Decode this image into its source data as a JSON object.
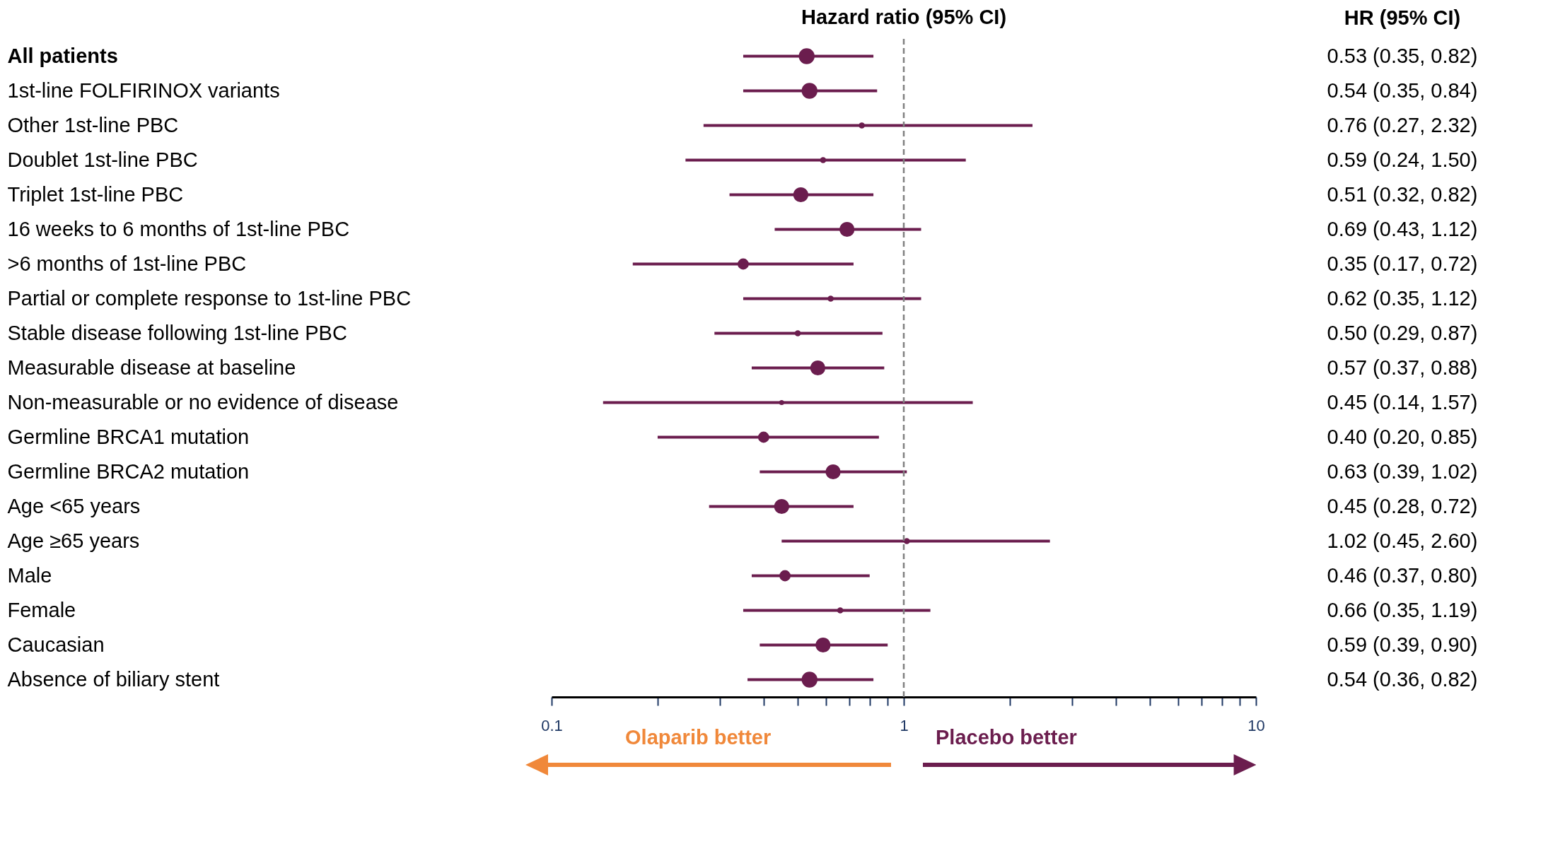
{
  "chart_data": {
    "type": "bubble",
    "orientation": "horizontal",
    "xlabel": "Hazard ratio (95% CI)",
    "categories": [
      "All patients",
      "1st-line FOLFIRINOX variants",
      "Other 1st-line PBC",
      "Doublet 1st-line PBC",
      "Triplet 1st-line PBC",
      "16 weeks to 6 months of 1st-line PBC",
      ">6 months of 1st-line PBC",
      "Partial or complete response to 1st-line PBC",
      "Stable disease following 1st-line PBC",
      "Measurable disease at baseline",
      "Non-measurable or no evidence of disease",
      "Germline BRCA1 mutation",
      "Germline BRCA2 mutation",
      "Age <65 years",
      "Age ≥65 years",
      "Male",
      "Female",
      "Caucasian",
      "Absence of biliary stent"
    ],
    "values": [
      0.53,
      0.54,
      0.76,
      0.59,
      0.51,
      0.69,
      0.35,
      0.62,
      0.5,
      0.57,
      0.45,
      0.4,
      0.63,
      0.45,
      1.02,
      0.46,
      0.66,
      0.59,
      0.54
    ],
    "errors": [
      [
        0.35,
        0.82
      ],
      [
        0.35,
        0.84
      ],
      [
        0.27,
        2.32
      ],
      [
        0.24,
        1.5
      ],
      [
        0.32,
        0.82
      ],
      [
        0.43,
        1.12
      ],
      [
        0.17,
        0.72
      ],
      [
        0.35,
        1.12
      ],
      [
        0.29,
        0.87
      ],
      [
        0.37,
        0.88
      ],
      [
        0.14,
        1.57
      ],
      [
        0.2,
        0.85
      ],
      [
        0.39,
        1.02
      ],
      [
        0.28,
        0.72
      ],
      [
        0.45,
        2.6
      ],
      [
        0.37,
        0.8
      ],
      [
        0.35,
        1.19
      ],
      [
        0.39,
        0.9
      ],
      [
        0.36,
        0.82
      ]
    ],
    "sizes": [
      1,
      1,
      0.15,
      0.15,
      0.9,
      0.9,
      0.5,
      0.15,
      0.15,
      0.9,
      0.1,
      0.5,
      0.9,
      0.9,
      0.15,
      0.5,
      0.15,
      0.9,
      1
    ],
    "value_labels": [
      "0.53 (0.35, 0.82)",
      "0.54 (0.35, 0.84)",
      "0.76 (0.27, 2.32)",
      "0.59 (0.24, 1.50)",
      "0.51 (0.32, 0.82)",
      "0.69 (0.43, 1.12)",
      "0.35 (0.17, 0.72)",
      "0.62 (0.35, 1.12)",
      "0.50 (0.29, 0.87)",
      "0.57 (0.37, 0.88)",
      "0.45 (0.14, 1.57)",
      "0.40 (0.20, 0.85)",
      "0.63 (0.39, 1.02)",
      "0.45 (0.28, 0.72)",
      "1.02 (0.45, 2.60)",
      "0.46 (0.37, 0.80)",
      "0.66 (0.35, 1.19)",
      "0.59 (0.39, 0.90)",
      "0.54 (0.36, 0.82)"
    ],
    "color": "#6b1d4e",
    "marker": "circle",
    "log": "x",
    "xlim": [
      0.1,
      10
    ],
    "xticks": [
      0.1,
      {
        "value": 0.2,
        "label": null
      },
      {
        "value": 0.3,
        "label": null
      },
      {
        "value": 0.4,
        "label": null
      },
      {
        "value": 0.5,
        "label": null
      },
      {
        "value": 0.6,
        "label": null
      },
      {
        "value": 0.7,
        "label": null
      },
      {
        "value": 0.8,
        "label": null
      },
      {
        "value": 0.9,
        "label": null
      },
      1,
      {
        "value": 2,
        "label": null
      },
      {
        "value": 3,
        "label": null
      },
      {
        "value": 4,
        "label": null
      },
      {
        "value": 5,
        "label": null
      },
      {
        "value": 6,
        "label": null
      },
      {
        "value": 7,
        "label": null
      },
      {
        "value": 8,
        "label": null
      },
      {
        "value": 9,
        "label": null
      },
      10
    ],
    "ref_lines": [
      {
        "axis": "x",
        "value": 1,
        "color": "#808080",
        "line_style": "dashed"
      }
    ],
    "annotations": [
      "HR (95% CI)",
      "Olaparib better",
      "Placebo better"
    ]
  }
}
